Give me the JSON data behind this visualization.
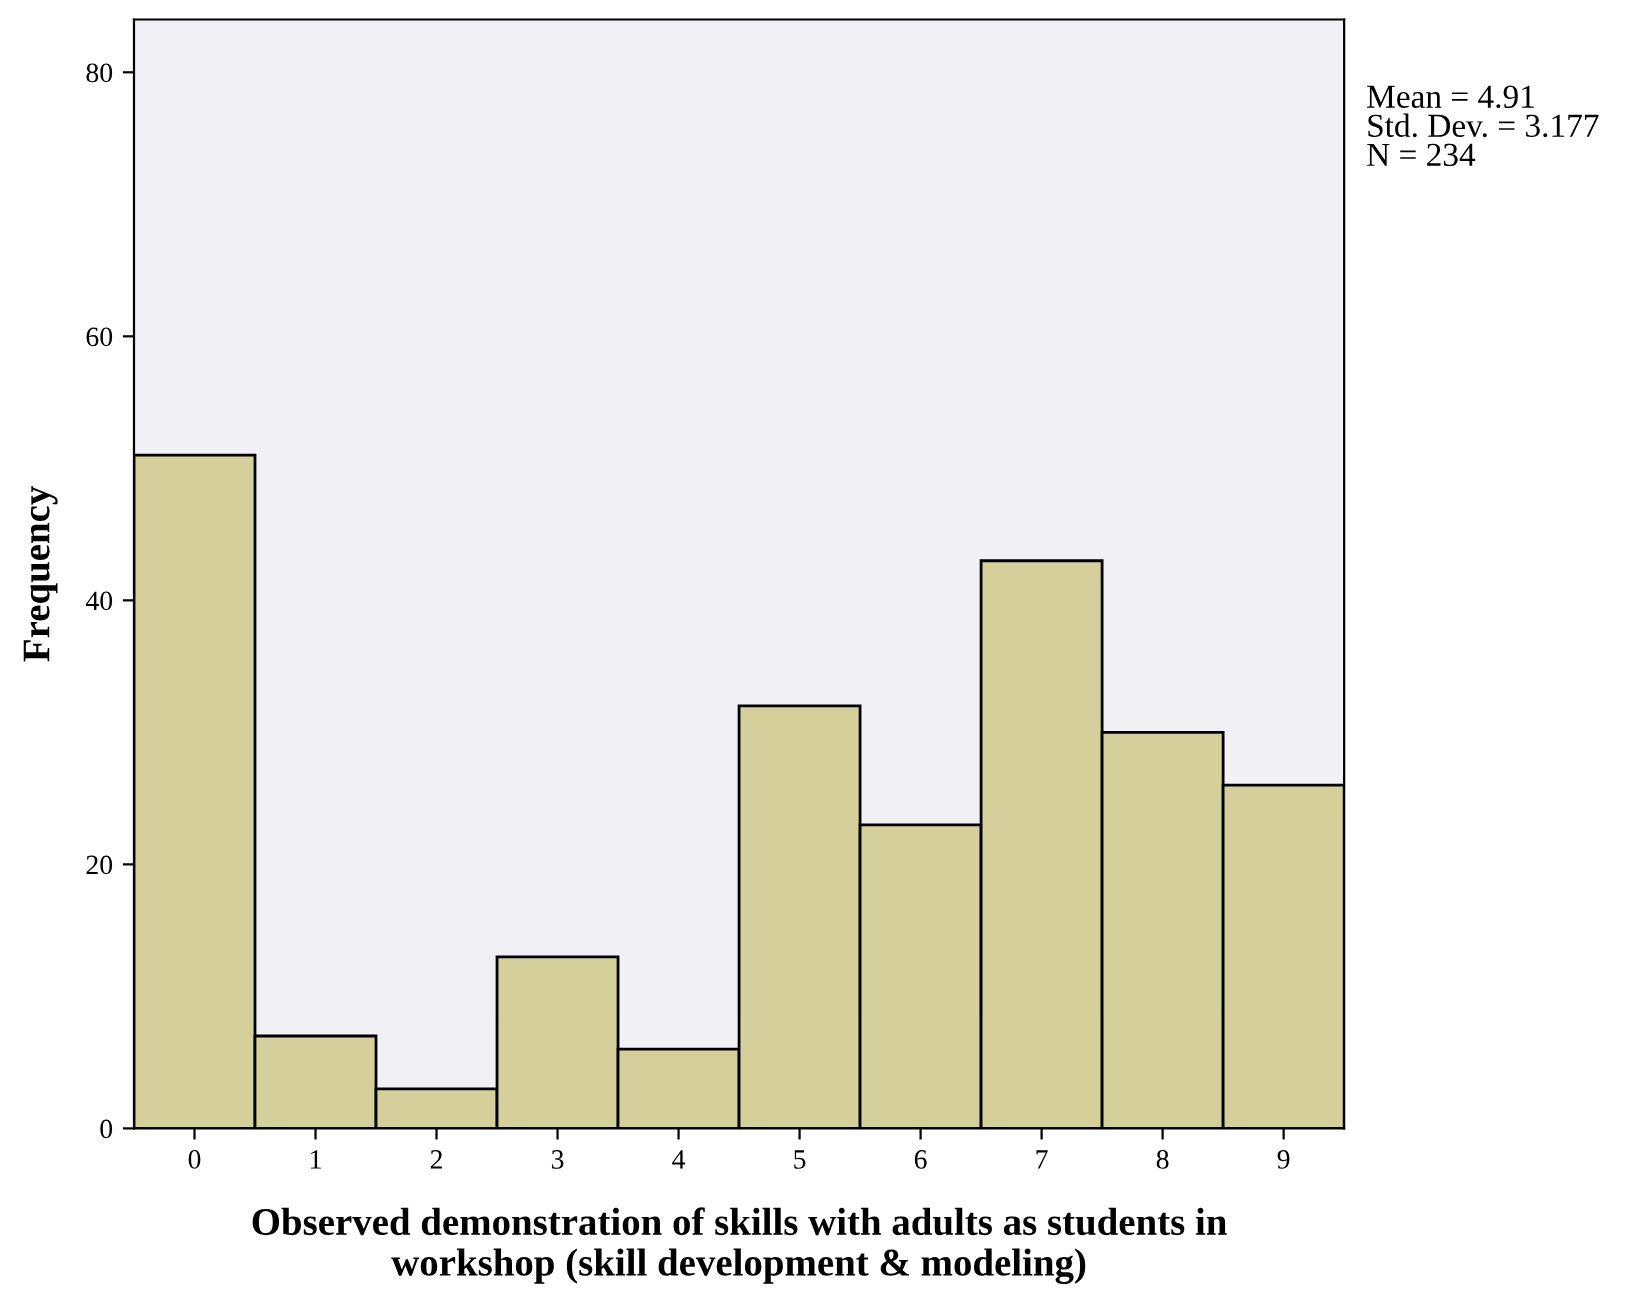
{
  "chart_data": {
    "type": "histogram",
    "xlabel": "Observed demonstration of skills with adults as students in\nworkshop (skill development & modeling)",
    "ylabel": "Frequency",
    "bins": [
      -0.5,
      0.5,
      1.5,
      2.5,
      3.5,
      4.5,
      5.5,
      6.5,
      7.5,
      8.5,
      9.5
    ],
    "values": [
      51,
      7,
      3,
      13,
      6,
      32,
      23,
      43,
      30,
      26
    ],
    "color": "#d4cf9b",
    "xlim": [
      -0.5,
      9.5
    ],
    "xticks": [
      0,
      1,
      2,
      3,
      4,
      5,
      6,
      7,
      8,
      9
    ],
    "ylim": [
      0,
      84
    ],
    "yticks": [
      0,
      20,
      40,
      60,
      80
    ],
    "grid": false,
    "annotations": [
      "Mean = 4.91\nStd. Dev. = 3.177\nN = 234"
    ]
  }
}
